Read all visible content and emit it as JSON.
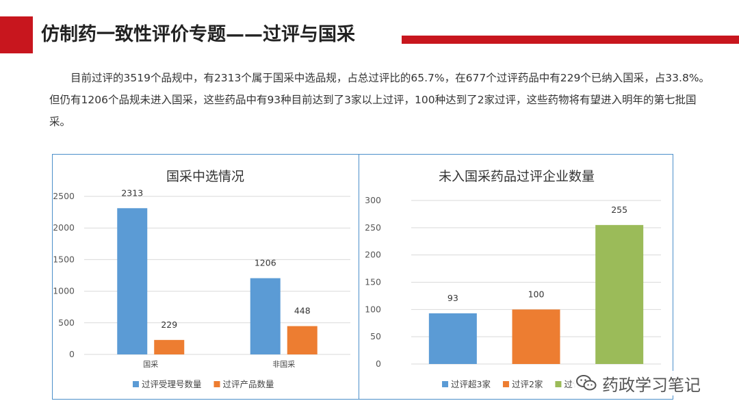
{
  "header": {
    "title": "仿制药一致性评价专题——过评与国采",
    "accent_color": "#c8161e"
  },
  "paragraph": "目前过评的3519个品规中，有2313个属于国采中选品规，占总过评比的65.7%，在677个过评药品中有229个已纳入国采，占33.8%。但仍有1206个品规未进入国采，这些药品中有93种目前达到了3家以上过评，100种达到了2家过评，这些药物将有望进入明年的第七批国采。",
  "watermark": {
    "text": "药政学习笔记",
    "icon": "wechat-icon"
  },
  "chart_data": [
    {
      "type": "bar",
      "title": "国采中选情况",
      "categories": [
        "国采",
        "非国采"
      ],
      "series": [
        {
          "name": "过评受理号数量",
          "values": [
            2313,
            1206
          ],
          "color": "#5b9bd5"
        },
        {
          "name": "过评产品数量",
          "values": [
            229,
            448
          ],
          "color": "#ed7d31"
        }
      ],
      "ylim": [
        0,
        2500
      ],
      "yticks": [
        0,
        500,
        1000,
        1500,
        2000,
        2500
      ],
      "grid": true,
      "legend": "bottom"
    },
    {
      "type": "bar",
      "title": "未入国采药品过评企业数量",
      "categories": [
        "过评超3家",
        "过评2家",
        "过评"
      ],
      "values": [
        93,
        100,
        255
      ],
      "colors": [
        "#5b9bd5",
        "#ed7d31",
        "#9bbb59"
      ],
      "legend_labels": [
        "过评超3家",
        "过评2家",
        "过评"
      ],
      "ylim": [
        0,
        300
      ],
      "yticks": [
        0,
        50,
        100,
        150,
        200,
        250,
        300
      ],
      "grid": true,
      "legend": "bottom"
    }
  ]
}
